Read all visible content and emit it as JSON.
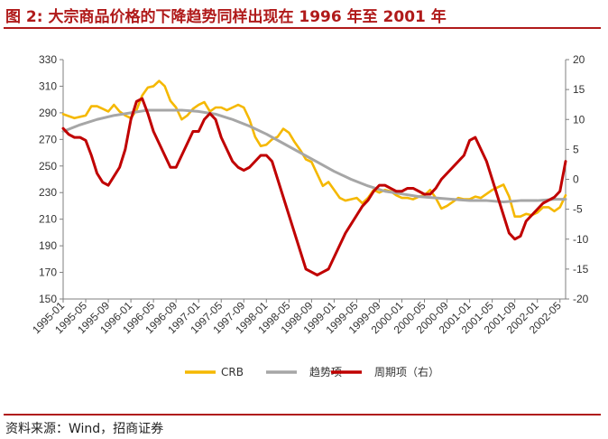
{
  "header": {
    "title": "图 2:  大宗商品价格的下降趋势同样出现在 1996 年至 2001 年"
  },
  "footer": {
    "source": "资料来源：Wind，招商证券"
  },
  "chart_data": {
    "type": "line",
    "x_labels": [
      "1995-01",
      "1995-05",
      "1995-09",
      "1996-01",
      "1996-05",
      "1996-09",
      "1997-01",
      "1997-05",
      "1997-09",
      "1998-01",
      "1998-05",
      "1998-09",
      "1999-01",
      "1999-05",
      "1999-09",
      "2000-01",
      "2000-05",
      "2000-09",
      "2001-01",
      "2001-05",
      "2001-09",
      "2002-01",
      "2002-05"
    ],
    "x_start": "1995-01",
    "x_end": "2002-06",
    "y_left": {
      "min": 150,
      "max": 330,
      "ticks": [
        150,
        170,
        190,
        210,
        230,
        250,
        270,
        290,
        310,
        330
      ]
    },
    "y_right": {
      "min": -20,
      "max": 20,
      "ticks": [
        -20,
        -15,
        -10,
        -5,
        0,
        5,
        10,
        15,
        20
      ]
    },
    "grid": false,
    "legend_position": "bottom",
    "series": [
      {
        "name": "CRB",
        "axis": "left",
        "color": "#f5b800",
        "points": [
          [
            "1995-01",
            289
          ],
          [
            "1995-03",
            286
          ],
          [
            "1995-05",
            288
          ],
          [
            "1995-06",
            295
          ],
          [
            "1995-07",
            295
          ],
          [
            "1995-08",
            293
          ],
          [
            "1995-09",
            291
          ],
          [
            "1995-10",
            296
          ],
          [
            "1995-11",
            291
          ],
          [
            "1995-12",
            288
          ],
          [
            "1996-01",
            286
          ],
          [
            "1996-02",
            292
          ],
          [
            "1996-03",
            303
          ],
          [
            "1996-04",
            309
          ],
          [
            "1996-05",
            310
          ],
          [
            "1996-06",
            314
          ],
          [
            "1996-07",
            310
          ],
          [
            "1996-08",
            299
          ],
          [
            "1996-09",
            294
          ],
          [
            "1996-10",
            285
          ],
          [
            "1996-11",
            288
          ],
          [
            "1996-12",
            293
          ],
          [
            "1997-01",
            296
          ],
          [
            "1997-02",
            298
          ],
          [
            "1997-03",
            291
          ],
          [
            "1997-04",
            294
          ],
          [
            "1997-05",
            294
          ],
          [
            "1997-06",
            292
          ],
          [
            "1997-07",
            294
          ],
          [
            "1997-08",
            296
          ],
          [
            "1997-09",
            294
          ],
          [
            "1997-10",
            285
          ],
          [
            "1997-11",
            272
          ],
          [
            "1997-12",
            265
          ],
          [
            "1998-01",
            266
          ],
          [
            "1998-02",
            270
          ],
          [
            "1998-03",
            272
          ],
          [
            "1998-04",
            278
          ],
          [
            "1998-05",
            275
          ],
          [
            "1998-06",
            268
          ],
          [
            "1998-07",
            262
          ],
          [
            "1998-08",
            255
          ],
          [
            "1998-09",
            253
          ],
          [
            "1998-10",
            244
          ],
          [
            "1998-11",
            235
          ],
          [
            "1998-12",
            238
          ],
          [
            "1999-01",
            232
          ],
          [
            "1999-02",
            226
          ],
          [
            "1999-03",
            224
          ],
          [
            "1999-04",
            225
          ],
          [
            "1999-05",
            226
          ],
          [
            "1999-06",
            222
          ],
          [
            "1999-07",
            226
          ],
          [
            "1999-08",
            232
          ],
          [
            "1999-09",
            230
          ],
          [
            "1999-10",
            232
          ],
          [
            "1999-11",
            231
          ],
          [
            "1999-12",
            228
          ],
          [
            "2000-01",
            226
          ],
          [
            "2000-02",
            226
          ],
          [
            "2000-03",
            225
          ],
          [
            "2000-04",
            227
          ],
          [
            "2000-05",
            228
          ],
          [
            "2000-06",
            232
          ],
          [
            "2000-07",
            226
          ],
          [
            "2000-08",
            218
          ],
          [
            "2000-09",
            220
          ],
          [
            "2000-10",
            223
          ],
          [
            "2000-11",
            226
          ],
          [
            "2000-12",
            225
          ],
          [
            "2001-01",
            225
          ],
          [
            "2001-02",
            227
          ],
          [
            "2001-03",
            226
          ],
          [
            "2001-04",
            229
          ],
          [
            "2001-05",
            232
          ],
          [
            "2001-06",
            234
          ],
          [
            "2001-07",
            236
          ],
          [
            "2001-08",
            227
          ],
          [
            "2001-09",
            212
          ],
          [
            "2001-10",
            212
          ],
          [
            "2001-11",
            214
          ],
          [
            "2001-12",
            213
          ],
          [
            "2002-01",
            215
          ],
          [
            "2002-02",
            219
          ],
          [
            "2002-03",
            219
          ],
          [
            "2002-04",
            216
          ],
          [
            "2002-05",
            219
          ],
          [
            "2002-06",
            228
          ]
        ]
      },
      {
        "name": "趋势项",
        "axis": "left",
        "color": "#a6a6a6",
        "points": [
          [
            "1995-01",
            276
          ],
          [
            "1995-04",
            281
          ],
          [
            "1995-07",
            285
          ],
          [
            "1995-10",
            288
          ],
          [
            "1996-01",
            290
          ],
          [
            "1996-04",
            292
          ],
          [
            "1996-07",
            292
          ],
          [
            "1996-10",
            292
          ],
          [
            "1997-01",
            291
          ],
          [
            "1997-04",
            289
          ],
          [
            "1997-07",
            285
          ],
          [
            "1997-10",
            280
          ],
          [
            "1998-01",
            274
          ],
          [
            "1998-04",
            267
          ],
          [
            "1998-07",
            260
          ],
          [
            "1998-10",
            253
          ],
          [
            "1999-01",
            246
          ],
          [
            "1999-04",
            240
          ],
          [
            "1999-07",
            235
          ],
          [
            "1999-10",
            231
          ],
          [
            "2000-01",
            229
          ],
          [
            "2000-04",
            227
          ],
          [
            "2000-07",
            226
          ],
          [
            "2000-10",
            225
          ],
          [
            "2001-01",
            224
          ],
          [
            "2001-04",
            224
          ],
          [
            "2001-07",
            223
          ],
          [
            "2001-10",
            224
          ],
          [
            "2002-01",
            224
          ],
          [
            "2002-04",
            225
          ],
          [
            "2002-06",
            225
          ]
        ]
      },
      {
        "name": "周期项（右）",
        "axis": "right",
        "color": "#c00000",
        "points": [
          [
            "1995-01",
            8.5
          ],
          [
            "1995-02",
            7.5
          ],
          [
            "1995-03",
            7
          ],
          [
            "1995-04",
            7
          ],
          [
            "1995-05",
            6.5
          ],
          [
            "1995-06",
            4
          ],
          [
            "1995-07",
            1
          ],
          [
            "1995-08",
            -0.5
          ],
          [
            "1995-09",
            -1
          ],
          [
            "1995-10",
            0.5
          ],
          [
            "1995-11",
            2
          ],
          [
            "1995-12",
            5
          ],
          [
            "1996-01",
            10
          ],
          [
            "1996-02",
            13
          ],
          [
            "1996-03",
            13.5
          ],
          [
            "1996-04",
            11
          ],
          [
            "1996-05",
            8
          ],
          [
            "1996-06",
            6
          ],
          [
            "1996-07",
            4
          ],
          [
            "1996-08",
            2
          ],
          [
            "1996-09",
            2
          ],
          [
            "1996-10",
            4
          ],
          [
            "1996-11",
            6
          ],
          [
            "1996-12",
            8
          ],
          [
            "1997-01",
            8
          ],
          [
            "1997-02",
            10
          ],
          [
            "1997-03",
            11
          ],
          [
            "1997-04",
            10
          ],
          [
            "1997-05",
            7
          ],
          [
            "1997-06",
            5
          ],
          [
            "1997-07",
            3
          ],
          [
            "1997-08",
            2
          ],
          [
            "1997-09",
            1.5
          ],
          [
            "1997-10",
            2
          ],
          [
            "1997-11",
            3
          ],
          [
            "1997-12",
            4
          ],
          [
            "1998-01",
            4
          ],
          [
            "1998-02",
            3
          ],
          [
            "1998-03",
            0
          ],
          [
            "1998-04",
            -3
          ],
          [
            "1998-05",
            -6
          ],
          [
            "1998-06",
            -9
          ],
          [
            "1998-07",
            -12
          ],
          [
            "1998-08",
            -15
          ],
          [
            "1998-09",
            -15.5
          ],
          [
            "1998-10",
            -16
          ],
          [
            "1998-11",
            -15.5
          ],
          [
            "1998-12",
            -15
          ],
          [
            "1999-01",
            -13
          ],
          [
            "1999-02",
            -11
          ],
          [
            "1999-03",
            -9
          ],
          [
            "1999-04",
            -7.5
          ],
          [
            "1999-05",
            -6
          ],
          [
            "1999-06",
            -4.5
          ],
          [
            "1999-07",
            -3.5
          ],
          [
            "1999-08",
            -2
          ],
          [
            "1999-09",
            -1
          ],
          [
            "1999-10",
            -1
          ],
          [
            "1999-11",
            -1.5
          ],
          [
            "1999-12",
            -2
          ],
          [
            "2000-01",
            -2
          ],
          [
            "2000-02",
            -1.5
          ],
          [
            "2000-03",
            -1.5
          ],
          [
            "2000-04",
            -2
          ],
          [
            "2000-05",
            -2.5
          ],
          [
            "2000-06",
            -2.5
          ],
          [
            "2000-07",
            -1.5
          ],
          [
            "2000-08",
            0
          ],
          [
            "2000-09",
            1
          ],
          [
            "2000-10",
            2
          ],
          [
            "2000-11",
            3
          ],
          [
            "2000-12",
            4
          ],
          [
            "2001-01",
            6.5
          ],
          [
            "2001-02",
            7
          ],
          [
            "2001-03",
            5
          ],
          [
            "2001-04",
            3
          ],
          [
            "2001-05",
            0
          ],
          [
            "2001-06",
            -3
          ],
          [
            "2001-07",
            -6
          ],
          [
            "2001-08",
            -9
          ],
          [
            "2001-09",
            -10
          ],
          [
            "2001-10",
            -9.5
          ],
          [
            "2001-11",
            -7
          ],
          [
            "2001-12",
            -6
          ],
          [
            "2002-01",
            -5
          ],
          [
            "2002-02",
            -4
          ],
          [
            "2002-03",
            -3.5
          ],
          [
            "2002-04",
            -3
          ],
          [
            "2002-05",
            -2
          ],
          [
            "2002-06",
            3
          ]
        ]
      }
    ]
  }
}
